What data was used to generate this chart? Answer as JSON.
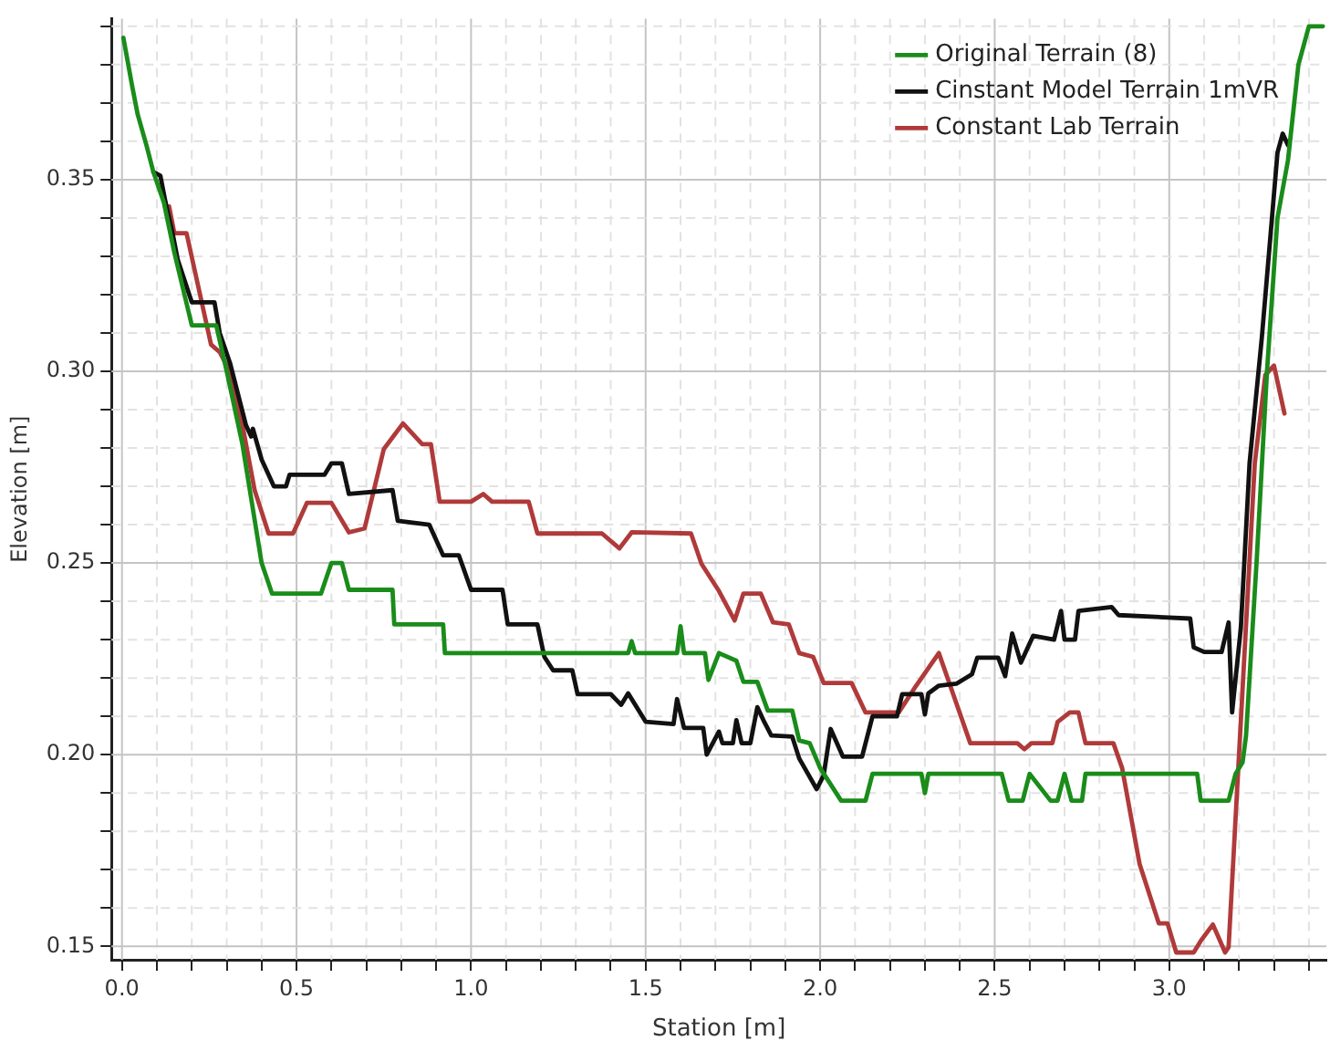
{
  "chart_data": {
    "type": "line",
    "xlabel": "Station [m]",
    "ylabel": "Elevation [m]",
    "xlim": [
      -0.03,
      3.45
    ],
    "ylim": [
      0.1465,
      0.392
    ],
    "xticks": [
      {
        "value": 0,
        "label": "0.0"
      },
      {
        "value": 0.1,
        "label": null
      },
      {
        "value": 0.2,
        "label": null
      },
      {
        "value": 0.3,
        "label": null
      },
      {
        "value": 0.4,
        "label": null
      },
      {
        "value": 0.5,
        "label": "0.5"
      },
      {
        "value": 0.6,
        "label": null
      },
      {
        "value": 0.7,
        "label": null
      },
      {
        "value": 0.8,
        "label": null
      },
      {
        "value": 0.9,
        "label": null
      },
      {
        "value": 1,
        "label": "1.0"
      },
      {
        "value": 1.1,
        "label": null
      },
      {
        "value": 1.2,
        "label": null
      },
      {
        "value": 1.3,
        "label": null
      },
      {
        "value": 1.4,
        "label": null
      },
      {
        "value": 1.5,
        "label": "1.5"
      },
      {
        "value": 1.6,
        "label": null
      },
      {
        "value": 1.7,
        "label": null
      },
      {
        "value": 1.8,
        "label": null
      },
      {
        "value": 1.9,
        "label": null
      },
      {
        "value": 2,
        "label": "2.0"
      },
      {
        "value": 2.1,
        "label": null
      },
      {
        "value": 2.2,
        "label": null
      },
      {
        "value": 2.3,
        "label": null
      },
      {
        "value": 2.4,
        "label": null
      },
      {
        "value": 2.5,
        "label": "2.5"
      },
      {
        "value": 2.6,
        "label": null
      },
      {
        "value": 2.7,
        "label": null
      },
      {
        "value": 2.8,
        "label": null
      },
      {
        "value": 2.9,
        "label": null
      },
      {
        "value": 3,
        "label": "3.0"
      },
      {
        "value": 3.1,
        "label": null
      },
      {
        "value": 3.2,
        "label": null
      },
      {
        "value": 3.3,
        "label": null
      },
      {
        "value": 3.4,
        "label": null
      }
    ],
    "yticks": [
      {
        "value": 0.15,
        "label": "0.15"
      },
      {
        "value": 0.16,
        "label": null
      },
      {
        "value": 0.17,
        "label": null
      },
      {
        "value": 0.18,
        "label": null
      },
      {
        "value": 0.19,
        "label": null
      },
      {
        "value": 0.2,
        "label": "0.20"
      },
      {
        "value": 0.21,
        "label": null
      },
      {
        "value": 0.22,
        "label": null
      },
      {
        "value": 0.23,
        "label": null
      },
      {
        "value": 0.24,
        "label": null
      },
      {
        "value": 0.25,
        "label": "0.25"
      },
      {
        "value": 0.26,
        "label": null
      },
      {
        "value": 0.27,
        "label": null
      },
      {
        "value": 0.28,
        "label": null
      },
      {
        "value": 0.29,
        "label": null
      },
      {
        "value": 0.3,
        "label": "0.30"
      },
      {
        "value": 0.31,
        "label": null
      },
      {
        "value": 0.32,
        "label": null
      },
      {
        "value": 0.33,
        "label": null
      },
      {
        "value": 0.34,
        "label": null
      },
      {
        "value": 0.35,
        "label": "0.35"
      },
      {
        "value": 0.36,
        "label": null
      },
      {
        "value": 0.37,
        "label": null
      },
      {
        "value": 0.38,
        "label": null
      },
      {
        "value": 0.39,
        "label": null
      }
    ],
    "grid": true,
    "legend": "top right",
    "marker": "none",
    "line_style": "solid",
    "series": [
      {
        "name": "Original Terrain (8)",
        "color": "#1a8c1a",
        "x": [
          0.004,
          0.03,
          0.045,
          0.07,
          0.09,
          0.12,
          0.15,
          0.2,
          0.27,
          0.3,
          0.345,
          0.4,
          0.43,
          0.57,
          0.6,
          0.63,
          0.65,
          0.775,
          0.78,
          0.92,
          0.925,
          1.45,
          1.46,
          1.47,
          1.59,
          1.6,
          1.61,
          1.67,
          1.68,
          1.71,
          1.76,
          1.78,
          1.82,
          1.85,
          1.92,
          1.94,
          1.97,
          2.0,
          2.06,
          2.13,
          2.15,
          2.29,
          2.3,
          2.31,
          2.52,
          2.54,
          2.58,
          2.6,
          2.66,
          2.68,
          2.7,
          2.72,
          2.75,
          2.76,
          3.08,
          3.09,
          3.17,
          3.19,
          3.21,
          3.22,
          3.25,
          3.28,
          3.31,
          3.34,
          3.37,
          3.4,
          3.44
        ],
        "values": [
          0.387,
          0.374,
          0.367,
          0.359,
          0.352,
          0.344,
          0.331,
          0.312,
          0.312,
          0.3,
          0.281,
          0.25,
          0.242,
          0.242,
          0.25,
          0.25,
          0.243,
          0.243,
          0.234,
          0.234,
          0.2265,
          0.2265,
          0.2296,
          0.2265,
          0.2265,
          0.2335,
          0.2265,
          0.2265,
          0.2195,
          0.2265,
          0.2245,
          0.219,
          0.219,
          0.2115,
          0.2115,
          0.2037,
          0.203,
          0.1965,
          0.188,
          0.188,
          0.195,
          0.195,
          0.19,
          0.195,
          0.195,
          0.188,
          0.188,
          0.195,
          0.188,
          0.188,
          0.195,
          0.188,
          0.188,
          0.195,
          0.195,
          0.188,
          0.188,
          0.195,
          0.198,
          0.205,
          0.25,
          0.3,
          0.34,
          0.355,
          0.38,
          0.39,
          0.39
        ]
      },
      {
        "name": "Cinstant Model Terrain 1mVR",
        "color": "#111111",
        "x": [
          0.09,
          0.11,
          0.125,
          0.145,
          0.16,
          0.2,
          0.265,
          0.28,
          0.31,
          0.355,
          0.37,
          0.375,
          0.4,
          0.435,
          0.47,
          0.48,
          0.58,
          0.6,
          0.63,
          0.65,
          0.775,
          0.79,
          0.88,
          0.92,
          0.965,
          1.0,
          1.09,
          1.105,
          1.19,
          1.21,
          1.235,
          1.29,
          1.305,
          1.4,
          1.43,
          1.45,
          1.5,
          1.58,
          1.59,
          1.61,
          1.665,
          1.675,
          1.71,
          1.72,
          1.75,
          1.76,
          1.775,
          1.8,
          1.82,
          1.84,
          1.86,
          1.92,
          1.94,
          1.99,
          2.01,
          2.03,
          2.065,
          2.12,
          2.15,
          2.22,
          2.235,
          2.29,
          2.3,
          2.31,
          2.34,
          2.39,
          2.435,
          2.45,
          2.51,
          2.53,
          2.55,
          2.575,
          2.61,
          2.67,
          2.69,
          2.7,
          2.73,
          2.74,
          2.835,
          2.855,
          3.06,
          3.07,
          3.1,
          3.15,
          3.17,
          3.18,
          3.205,
          3.23,
          3.265,
          3.31,
          3.325,
          3.34
        ],
        "values": [
          0.352,
          0.351,
          0.344,
          0.336,
          0.329,
          0.318,
          0.318,
          0.31,
          0.302,
          0.286,
          0.283,
          0.285,
          0.277,
          0.27,
          0.27,
          0.273,
          0.273,
          0.276,
          0.276,
          0.268,
          0.269,
          0.261,
          0.26,
          0.252,
          0.252,
          0.243,
          0.243,
          0.234,
          0.234,
          0.2255,
          0.222,
          0.222,
          0.2158,
          0.2158,
          0.213,
          0.216,
          0.2086,
          0.208,
          0.2145,
          0.207,
          0.207,
          0.2,
          0.206,
          0.203,
          0.203,
          0.209,
          0.203,
          0.203,
          0.2124,
          0.2085,
          0.205,
          0.2047,
          0.199,
          0.191,
          0.1946,
          0.2067,
          0.1995,
          0.1995,
          0.21,
          0.21,
          0.2158,
          0.2158,
          0.2105,
          0.216,
          0.218,
          0.2185,
          0.221,
          0.2253,
          0.2253,
          0.2205,
          0.2316,
          0.224,
          0.231,
          0.23,
          0.2375,
          0.23,
          0.23,
          0.2375,
          0.2385,
          0.2364,
          0.2355,
          0.228,
          0.2268,
          0.2268,
          0.2345,
          0.211,
          0.233,
          0.276,
          0.3086,
          0.357,
          0.362,
          0.359
        ]
      },
      {
        "name": "Constant Lab Terrain",
        "color": "#b03a3a",
        "x": [
          0.135,
          0.15,
          0.185,
          0.255,
          0.28,
          0.3,
          0.345,
          0.38,
          0.42,
          0.49,
          0.53,
          0.6,
          0.65,
          0.695,
          0.75,
          0.805,
          0.86,
          0.885,
          0.91,
          1.0,
          1.035,
          1.06,
          1.165,
          1.19,
          1.375,
          1.425,
          1.46,
          1.63,
          1.66,
          1.71,
          1.755,
          1.78,
          1.83,
          1.865,
          1.91,
          1.94,
          1.98,
          2.01,
          2.09,
          2.13,
          2.225,
          2.275,
          2.34,
          2.43,
          2.565,
          2.585,
          2.605,
          2.665,
          2.68,
          2.715,
          2.74,
          2.76,
          2.84,
          2.865,
          2.915,
          2.97,
          2.995,
          3.02,
          3.07,
          3.09,
          3.125,
          3.16,
          3.17,
          3.245,
          3.275,
          3.3,
          3.33
        ],
        "values": [
          0.343,
          0.336,
          0.336,
          0.307,
          0.305,
          0.3015,
          0.286,
          0.269,
          0.2577,
          0.2577,
          0.2657,
          0.2657,
          0.258,
          0.259,
          0.2797,
          0.2864,
          0.281,
          0.281,
          0.266,
          0.266,
          0.268,
          0.266,
          0.266,
          0.2577,
          0.2577,
          0.2538,
          0.258,
          0.2577,
          0.2498,
          0.2427,
          0.235,
          0.242,
          0.242,
          0.2345,
          0.234,
          0.2265,
          0.2255,
          0.2187,
          0.2187,
          0.211,
          0.211,
          0.218,
          0.2265,
          0.203,
          0.203,
          0.2014,
          0.203,
          0.203,
          0.2085,
          0.211,
          0.211,
          0.203,
          0.203,
          0.1965,
          0.1715,
          0.156,
          0.156,
          0.1484,
          0.1484,
          0.1514,
          0.1557,
          0.1484,
          0.1498,
          0.276,
          0.299,
          0.3015,
          0.289
        ]
      }
    ]
  }
}
